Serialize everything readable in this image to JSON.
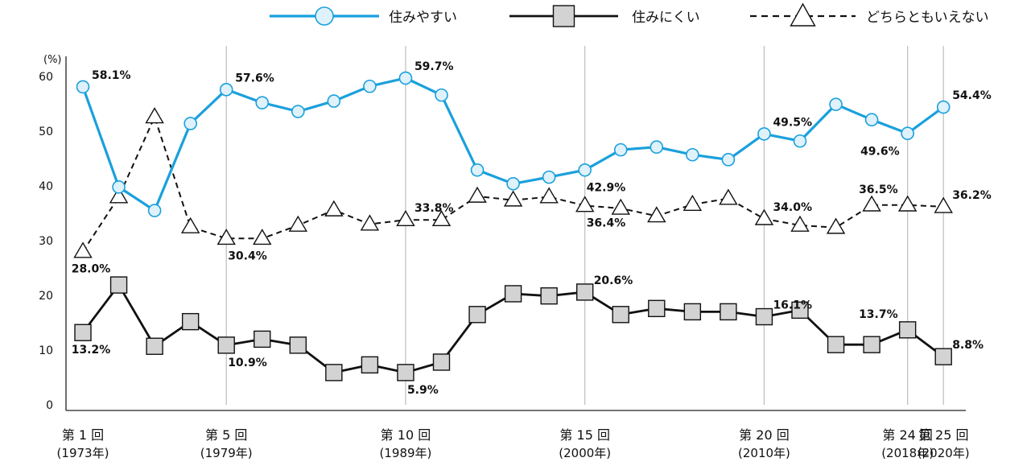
{
  "chart_data": {
    "type": "line",
    "unit": "(%)",
    "x": [
      1,
      2,
      3,
      4,
      5,
      6,
      7,
      8,
      9,
      10,
      11,
      12,
      13,
      14,
      15,
      16,
      17,
      18,
      19,
      20,
      21,
      22,
      23,
      24,
      25
    ],
    "ylim": [
      0,
      60
    ],
    "yticks": [
      0,
      10,
      20,
      30,
      40,
      50,
      60
    ],
    "xticks": [
      {
        "x": 1,
        "line1": "第 1 回",
        "line2": "(1973年)"
      },
      {
        "x": 5,
        "line1": "第 5 回",
        "line2": "(1979年)"
      },
      {
        "x": 10,
        "line1": "第 10 回",
        "line2": "(1989年)"
      },
      {
        "x": 15,
        "line1": "第 15 回",
        "line2": "(2000年)"
      },
      {
        "x": 20,
        "line1": "第 20 回",
        "line2": "(2010年)"
      },
      {
        "x": 24,
        "line1": "第 24 回",
        "line2": "(2018年)"
      },
      {
        "x": 25,
        "line1": "第 25 回",
        "line2": "(2020年)"
      }
    ],
    "gridlines_x": [
      5,
      10,
      15,
      20,
      24,
      25
    ],
    "legend_position": "top",
    "series": [
      {
        "key": "easy",
        "name": "住みやすい",
        "color": "#1aa0dc",
        "marker": "circle",
        "dash": "solid",
        "values": [
          58.1,
          39.8,
          35.5,
          51.4,
          57.6,
          55.2,
          53.6,
          55.5,
          58.2,
          59.7,
          56.6,
          42.9,
          40.4,
          41.6,
          42.9,
          46.6,
          47.1,
          45.7,
          44.8,
          49.5,
          48.2,
          54.9,
          52.1,
          49.6,
          54.4
        ],
        "labels": [
          {
            "x": 1,
            "text": "58.1%",
            "pos": "right-above"
          },
          {
            "x": 5,
            "text": "57.6%",
            "pos": "right-above"
          },
          {
            "x": 10,
            "text": "59.7%",
            "pos": "right-above"
          },
          {
            "x": 15,
            "text": "42.9%",
            "pos": "right-below"
          },
          {
            "x": 20,
            "text": "49.5%",
            "pos": "right-above"
          },
          {
            "x": 24,
            "text": "49.6%",
            "pos": "left-below"
          },
          {
            "x": 25,
            "text": "54.4%",
            "pos": "right-above"
          }
        ]
      },
      {
        "key": "hard",
        "name": "住みにくい",
        "color": "#111111",
        "marker": "square",
        "dash": "solid",
        "values": [
          13.2,
          21.9,
          10.7,
          15.2,
          10.9,
          12.0,
          10.9,
          5.9,
          7.3,
          5.9,
          7.8,
          16.5,
          20.3,
          19.9,
          20.6,
          16.5,
          17.6,
          17.0,
          17.0,
          16.1,
          17.3,
          11.0,
          11.0,
          13.7,
          8.8
        ],
        "labels": [
          {
            "x": 1,
            "text": "13.2%",
            "pos": "below"
          },
          {
            "x": 5,
            "text": "10.9%",
            "pos": "right-below"
          },
          {
            "x": 10,
            "text": "5.9%",
            "pos": "right-below"
          },
          {
            "x": 15,
            "text": "20.6%",
            "pos": "right-above"
          },
          {
            "x": 20,
            "text": "16.1%",
            "pos": "right-above"
          },
          {
            "x": 24,
            "text": "13.7%",
            "pos": "left-above"
          },
          {
            "x": 25,
            "text": "8.8%",
            "pos": "right-above"
          }
        ]
      },
      {
        "key": "neither",
        "name": "どちらともいえない",
        "color": "#111111",
        "marker": "triangle",
        "dash": "dashed",
        "values": [
          28.0,
          38.0,
          52.6,
          32.5,
          30.4,
          30.4,
          32.8,
          35.6,
          33.0,
          33.8,
          33.8,
          38.1,
          37.4,
          38.0,
          36.4,
          35.9,
          34.5,
          36.6,
          37.7,
          34.0,
          32.8,
          32.4,
          36.5,
          36.5,
          36.2
        ],
        "labels": [
          {
            "x": 1,
            "text": "28.0%",
            "pos": "below"
          },
          {
            "x": 5,
            "text": "30.4%",
            "pos": "right-below"
          },
          {
            "x": 10,
            "text": "33.8%",
            "pos": "right-above"
          },
          {
            "x": 15,
            "text": "36.4%",
            "pos": "right-below"
          },
          {
            "x": 20,
            "text": "34.0%",
            "pos": "right-above"
          },
          {
            "x": 24,
            "text": "36.5%",
            "pos": "left-above"
          },
          {
            "x": 25,
            "text": "36.2%",
            "pos": "right-above"
          }
        ]
      }
    ]
  }
}
